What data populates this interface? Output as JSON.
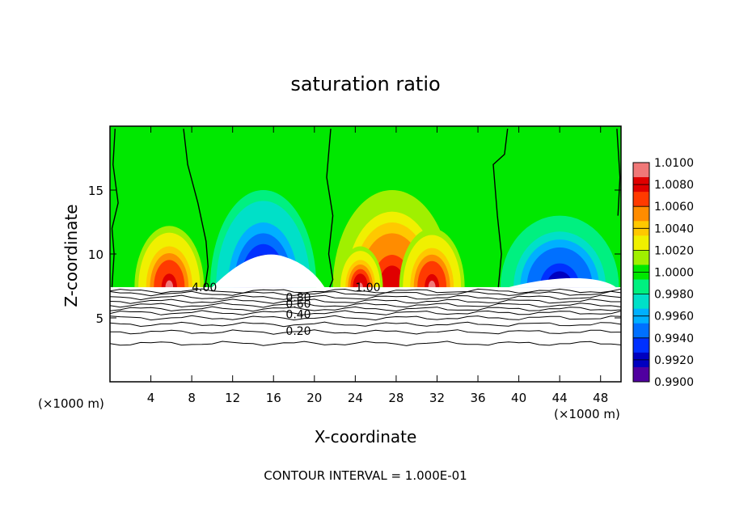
{
  "chart_data": {
    "type": "heatmap",
    "title": "saturation ratio",
    "xlabel": "X-coordinate",
    "ylabel": "Z-coordinate",
    "x_unit_left": "(×1000 m)",
    "x_unit_right": "(×1000 m)",
    "xlim": [
      0,
      50
    ],
    "ylim": [
      0,
      20
    ],
    "x_ticks": [
      4,
      8,
      12,
      16,
      20,
      24,
      28,
      32,
      36,
      40,
      44,
      48
    ],
    "y_ticks": [
      5,
      10,
      15
    ],
    "footer": "CONTOUR INTERVAL = 1.000E-01",
    "colorbar": {
      "range": [
        0.99,
        1.01
      ],
      "labels": [
        "1.0100",
        "1.0080",
        "1.0060",
        "1.0040",
        "1.0020",
        "1.0000",
        "0.9980",
        "0.9960",
        "0.9940",
        "0.9920",
        "0.9900"
      ],
      "colors": [
        "#f07878",
        "#e00000",
        "#ff3a00",
        "#ff8c00",
        "#ffc800",
        "#f0f000",
        "#a0f000",
        "#00e800",
        "#00f080",
        "#00e0c8",
        "#00b0ff",
        "#0070ff",
        "#0030ff",
        "#0000c0",
        "#5000a0"
      ]
    },
    "contour_labels": [
      {
        "text": "4.00",
        "x": 8,
        "y": 7.4
      },
      {
        "text": "1.00",
        "x": 24,
        "y": 7.4
      },
      {
        "text": "0.80",
        "x": 17.2,
        "y": 6.6
      },
      {
        "text": "0.60",
        "x": 17.2,
        "y": 6.1
      },
      {
        "text": "0.40",
        "x": 17.2,
        "y": 5.3
      },
      {
        "text": "0.20",
        "x": 17.2,
        "y": 4.0
      }
    ],
    "contour_levels_y": [
      7.1,
      6.9,
      6.6,
      6.3,
      6.0,
      5.7,
      5.4,
      5.0,
      4.5,
      3.9,
      3.0
    ],
    "unity_contours": [
      [
        [
          0.5,
          19.8
        ],
        [
          0.3,
          17
        ],
        [
          0.8,
          14
        ],
        [
          0.2,
          12
        ],
        [
          0.4,
          10
        ],
        [
          0.2,
          7.4
        ]
      ],
      [
        [
          7.2,
          19.8
        ],
        [
          7.6,
          17
        ],
        [
          8.6,
          14
        ],
        [
          9.4,
          11
        ],
        [
          9.6,
          9
        ],
        [
          9.3,
          7.4
        ]
      ],
      [
        [
          21.6,
          19.8
        ],
        [
          21.2,
          16
        ],
        [
          21.8,
          13
        ],
        [
          21.4,
          10
        ],
        [
          21.8,
          8
        ],
        [
          21.5,
          7.4
        ]
      ],
      [
        [
          38.9,
          19.8
        ],
        [
          38.6,
          17.8
        ],
        [
          37.5,
          17
        ],
        [
          37.9,
          13
        ],
        [
          38.3,
          10
        ],
        [
          38.0,
          7.4
        ]
      ],
      [
        [
          49.6,
          19.8
        ],
        [
          49.9,
          16
        ],
        [
          49.7,
          13
        ]
      ]
    ],
    "moist_regions": [
      {
        "cx": 5.8,
        "cy": 7.4,
        "rx": 3.4,
        "ry": 4.8,
        "peak": 1.009
      },
      {
        "cx": 27.6,
        "cy": 7.4,
        "rx": 5.8,
        "ry": 7.6,
        "peak": 1.0085
      },
      {
        "cx": 24.5,
        "cy": 7.4,
        "rx": 2.2,
        "ry": 3.2,
        "peak": 1.0095
      },
      {
        "cx": 31.5,
        "cy": 7.4,
        "rx": 3.2,
        "ry": 4.6,
        "peak": 1.009
      }
    ],
    "dry_regions": [
      {
        "cx": 15.0,
        "cy": 7.4,
        "rx": 5.2,
        "ry": 7.6,
        "peak": 0.9905
      },
      {
        "cx": 44.0,
        "cy": 7.4,
        "rx": 5.8,
        "ry": 5.6,
        "peak": 0.9915
      }
    ],
    "cloud_base_z": 7.4
  }
}
